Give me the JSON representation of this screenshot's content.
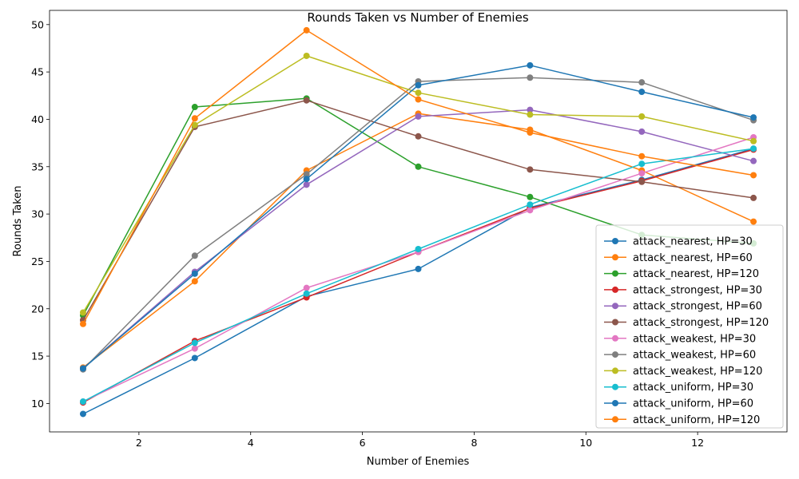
{
  "chart_data": {
    "type": "line",
    "title": "Rounds Taken vs Number of Enemies",
    "xlabel": "Number of Enemies",
    "ylabel": "Rounds Taken",
    "xlim": [
      0.4,
      13.6
    ],
    "ylim": [
      7.0,
      51.5
    ],
    "xticks": [
      2,
      4,
      6,
      8,
      10,
      12
    ],
    "yticks": [
      10,
      15,
      20,
      25,
      30,
      35,
      40,
      45,
      50
    ],
    "legend_position": "lower-right",
    "grid": false,
    "x": [
      1,
      3,
      5,
      7,
      9,
      11,
      13
    ],
    "series": [
      {
        "name": "attack_nearest, HP=30",
        "color": "#1f77b4",
        "values": [
          8.9,
          14.8,
          21.3,
          24.2,
          30.7,
          33.6,
          36.9
        ]
      },
      {
        "name": "attack_nearest, HP=60",
        "color": "#ff7f0e",
        "values": [
          13.8,
          22.9,
          34.6,
          40.6,
          38.9,
          34.6,
          29.2
        ]
      },
      {
        "name": "attack_nearest, HP=120",
        "color": "#2ca02c",
        "values": [
          19.3,
          41.3,
          42.2,
          35.0,
          31.8,
          27.8,
          26.9
        ]
      },
      {
        "name": "attack_strongest, HP=30",
        "color": "#d62728",
        "values": [
          10.1,
          16.6,
          21.2,
          26.0,
          30.6,
          33.5,
          36.8
        ]
      },
      {
        "name": "attack_strongest, HP=60",
        "color": "#9467bd",
        "values": [
          13.7,
          23.9,
          33.1,
          40.3,
          41.0,
          38.7,
          35.6
        ]
      },
      {
        "name": "attack_strongest, HP=120",
        "color": "#8c564b",
        "values": [
          18.8,
          39.2,
          42.0,
          38.2,
          34.7,
          33.4,
          31.7
        ]
      },
      {
        "name": "attack_weakest, HP=30",
        "color": "#e377c2",
        "values": [
          10.2,
          15.8,
          22.2,
          26.0,
          30.4,
          34.3,
          38.1
        ]
      },
      {
        "name": "attack_weakest, HP=60",
        "color": "#7f7f7f",
        "values": [
          13.6,
          25.6,
          34.2,
          44.0,
          44.4,
          43.9,
          39.9
        ]
      },
      {
        "name": "attack_weakest, HP=120",
        "color": "#bcbd22",
        "values": [
          19.6,
          39.4,
          46.7,
          42.8,
          40.5,
          40.3,
          37.7
        ]
      },
      {
        "name": "attack_uniform, HP=30",
        "color": "#17becf",
        "values": [
          10.2,
          16.4,
          21.6,
          26.3,
          31.0,
          35.3,
          36.9
        ]
      },
      {
        "name": "attack_uniform, HP=60",
        "color": "#1f77b4",
        "values": [
          13.7,
          23.7,
          33.7,
          43.6,
          45.7,
          42.9,
          40.2
        ]
      },
      {
        "name": "attack_uniform, HP=120",
        "color": "#ff7f0e",
        "values": [
          18.4,
          40.1,
          49.4,
          42.1,
          38.6,
          36.1,
          34.1
        ]
      }
    ]
  }
}
